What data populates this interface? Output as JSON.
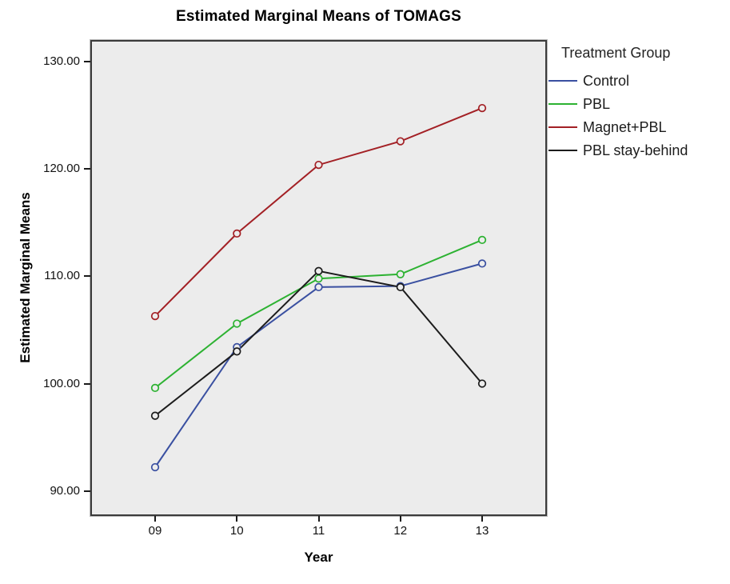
{
  "chart_data": {
    "type": "line",
    "title": "Estimated Marginal Means of TOMAGS",
    "xlabel": "Year",
    "ylabel": "Estimated Marginal Means",
    "categories": [
      "09",
      "10",
      "11",
      "12",
      "13"
    ],
    "series": [
      {
        "name": "Control",
        "color": "#3A50A1",
        "values": [
          92.2,
          103.4,
          109.0,
          109.1,
          111.2
        ]
      },
      {
        "name": "PBL",
        "color": "#2DB232",
        "values": [
          99.6,
          105.6,
          109.8,
          110.2,
          113.4
        ]
      },
      {
        "name": "Magnet+PBL",
        "color": "#A32025",
        "values": [
          106.3,
          114.0,
          120.4,
          122.6,
          125.7
        ]
      },
      {
        "name": "PBL stay-behind",
        "color": "#1C1C1C",
        "values": [
          97.0,
          103.0,
          110.5,
          109.0,
          100.0
        ]
      }
    ],
    "y_ticks": [
      "90.00",
      "100.00",
      "110.00",
      "120.00",
      "130.00"
    ],
    "y_tick_values": [
      90,
      100,
      110,
      120,
      130
    ],
    "ylim": [
      87.8,
      131.9
    ],
    "legend_title": "Treatment Group",
    "legend_position": "right",
    "grid": false,
    "marker": "open-circle",
    "plot_bg": "#ECECEC",
    "frame_color": "#3B3B3B"
  }
}
